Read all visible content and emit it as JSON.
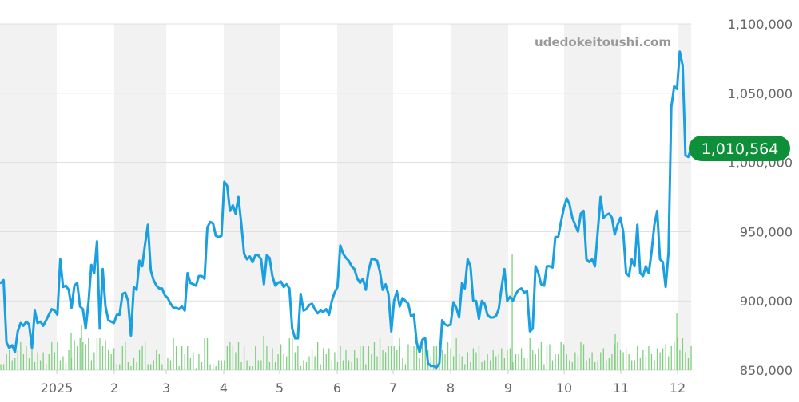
{
  "watermark": "udedokeitoushi.com",
  "current_value_label": "1,010,564",
  "colors": {
    "line": "#1a9fe0",
    "volume": "#7fcf7f",
    "badge": "#0e8f3a",
    "band": "#f2f2f2",
    "grid": "#dddddd",
    "tick_text": "#666666",
    "watermark": "#999999"
  },
  "chart_data": {
    "type": "line",
    "title": "",
    "xlabel": "",
    "ylabel": "",
    "ylim": [
      850000,
      1100000
    ],
    "yticks": [
      850000,
      900000,
      950000,
      1000000,
      1050000,
      1100000
    ],
    "ytick_labels": [
      "850,000",
      "900,000",
      "950,000",
      "1,000,000",
      "1,050,000",
      "1,100,000"
    ],
    "xtick_labels": [
      "2025",
      "2",
      "3",
      "4",
      "5",
      "6",
      "7",
      "8",
      "9",
      "10",
      "11",
      "12"
    ],
    "last_value": 1010564,
    "series": [
      {
        "values": [
          913000,
          915000,
          870000,
          866000,
          868000,
          863000,
          878000,
          884000,
          882000,
          885000,
          883000,
          866000,
          893000,
          884000,
          885000,
          882000,
          886000,
          890000,
          894000,
          893000,
          890000,
          930000,
          910000,
          911000,
          908000,
          895000,
          911000,
          913000,
          896000,
          894000,
          880000,
          899000,
          926000,
          920000,
          943000,
          880000,
          923000,
          896000,
          886000,
          885000,
          884000,
          890000,
          890000,
          905000,
          906000,
          900000,
          875000,
          910000,
          908000,
          929000,
          925000,
          941000,
          955000,
          922000,
          915000,
          911000,
          909000,
          909000,
          904000,
          902000,
          898000,
          895000,
          895000,
          894000,
          896000,
          893000,
          920000,
          913000,
          912000,
          911000,
          918000,
          918000,
          916000,
          953000,
          957000,
          956000,
          947000,
          946000,
          947000,
          986000,
          983000,
          965000,
          969000,
          963000,
          975000,
          956000,
          934000,
          930000,
          932000,
          928000,
          933000,
          933000,
          930000,
          912000,
          933000,
          931000,
          918000,
          911000,
          913000,
          914000,
          910000,
          912000,
          909000,
          880000,
          873000,
          873000,
          905000,
          893000,
          894000,
          897000,
          898000,
          894000,
          891000,
          893000,
          892000,
          894000,
          890000,
          900000,
          906000,
          910000,
          940000,
          934000,
          931000,
          929000,
          925000,
          923000,
          916000,
          913000,
          916000,
          908000,
          922000,
          930000,
          930000,
          929000,
          921000,
          908000,
          912000,
          905000,
          878000,
          900000,
          907000,
          896000,
          902000,
          900000,
          898000,
          889000,
          890000,
          870000,
          863000,
          872000,
          873000,
          855000,
          853000,
          853000,
          852000,
          855000,
          886000,
          883000,
          882000,
          883000,
          899000,
          895000,
          888000,
          913000,
          909000,
          930000,
          925000,
          900000,
          900000,
          887000,
          900000,
          898000,
          890000,
          888000,
          888000,
          889000,
          894000,
          910000,
          923000,
          900000,
          903000,
          900000,
          905000,
          908000,
          909000,
          906000,
          907000,
          878000,
          880000,
          925000,
          920000,
          912000,
          911000,
          925000,
          925000,
          924000,
          946000,
          946000,
          957000,
          967000,
          974000,
          970000,
          960000,
          955000,
          950000,
          963000,
          965000,
          930000,
          928000,
          930000,
          925000,
          950000,
          975000,
          960000,
          962000,
          963000,
          960000,
          948000,
          955000,
          960000,
          950000,
          920000,
          918000,
          930000,
          925000,
          955000,
          920000,
          918000,
          925000,
          920000,
          935000,
          955000,
          965000,
          930000,
          928000,
          910000,
          935000,
          1040000,
          1055000,
          1053000,
          1080000,
          1070000,
          1005000,
          1004000,
          1010564
        ]
      }
    ],
    "volume": [
      3,
      3,
      8,
      10,
      5,
      6,
      10,
      14,
      8,
      12,
      6,
      12,
      4,
      9,
      5,
      9,
      3,
      8,
      14,
      9,
      14,
      5,
      7,
      4,
      10,
      6,
      15,
      12,
      16,
      14,
      13,
      16,
      5,
      9,
      16,
      16,
      12,
      15,
      10,
      8,
      11,
      3,
      3,
      12,
      14,
      4,
      2,
      6,
      4,
      10,
      12,
      14,
      3,
      3,
      5,
      10,
      8,
      3,
      1,
      6,
      5,
      16,
      12,
      2,
      12,
      8,
      12,
      6,
      9,
      1,
      8,
      4,
      16,
      16,
      3,
      3,
      2,
      5,
      5,
      5,
      12,
      14,
      12,
      9,
      14,
      4,
      12,
      5,
      2,
      2,
      12,
      5,
      5,
      16,
      12,
      4,
      11,
      4,
      8,
      13,
      8,
      7,
      16,
      16,
      9,
      12,
      2,
      5,
      4,
      7,
      10,
      7,
      14,
      3,
      11,
      8,
      11,
      5,
      9,
      4,
      12,
      5,
      10,
      5,
      4,
      10,
      6,
      12,
      12,
      3,
      12,
      8,
      14,
      7,
      16,
      10,
      9,
      12,
      12,
      12,
      10,
      12,
      6,
      3,
      13,
      12,
      12,
      13,
      6,
      14,
      16,
      10,
      7,
      12,
      12,
      7,
      10,
      8,
      14,
      11,
      7,
      16,
      8,
      7,
      3,
      9,
      4,
      11,
      9,
      12,
      4,
      5,
      8,
      5,
      10,
      7,
      8,
      11,
      6,
      10,
      11,
      4,
      8,
      8,
      11,
      6,
      6,
      16,
      10,
      8,
      11,
      14,
      3,
      12,
      13,
      5,
      8,
      8,
      14,
      13,
      8,
      5,
      4,
      9,
      7,
      14,
      13,
      5,
      6,
      9,
      4,
      5,
      9,
      11,
      5,
      6,
      8,
      13,
      14,
      10,
      9,
      11,
      8,
      5,
      5,
      12,
      6,
      10,
      7,
      12,
      8,
      5,
      11,
      9,
      11,
      13,
      7,
      12,
      14,
      16,
      10,
      16,
      9,
      6,
      12
    ]
  }
}
